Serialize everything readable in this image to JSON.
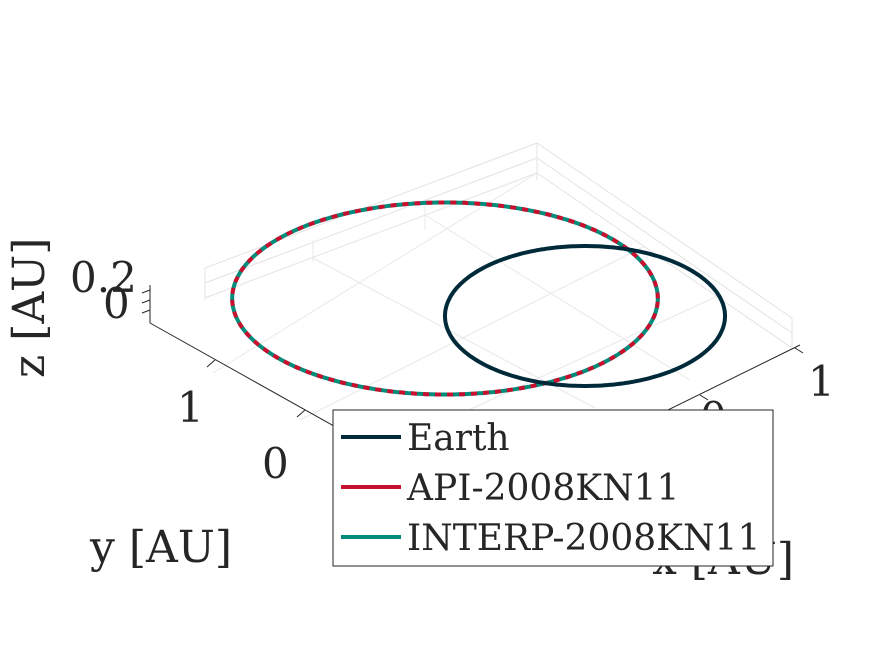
{
  "chart_data": {
    "type": "line",
    "projection": "3d",
    "xlabel": "x [AU]",
    "ylabel": "y [AU]",
    "zlabel": "z [AU]",
    "xticks": [
      "0",
      "1"
    ],
    "yticks": [
      "0",
      "1"
    ],
    "zticks": [
      "0",
      "0.2"
    ],
    "xlim": [
      -2.2,
      1.1
    ],
    "ylim": [
      -1.0,
      1.6
    ],
    "zlim": [
      -0.02,
      0.25
    ],
    "grid": true,
    "legend_position": "bottom-right",
    "series": [
      {
        "name": "Earth",
        "color": "#002a3a",
        "orbit": {
          "a": 1.0,
          "e": 0.0167,
          "center_x": 0.0,
          "center_y": 0.0,
          "inclination_deg": 0.0
        }
      },
      {
        "name": "API-2008KN11",
        "color": "#c8102e",
        "orbit": {
          "a": 1.52,
          "e": 0.43,
          "center_x": -1.0,
          "center_y": 0.25,
          "inclination_deg": 1.5
        }
      },
      {
        "name": "INTERP-2008KN11",
        "color": "#008b7a",
        "orbit": {
          "a": 1.52,
          "e": 0.43,
          "center_x": -1.0,
          "center_y": 0.25,
          "inclination_deg": 1.5
        }
      }
    ]
  }
}
